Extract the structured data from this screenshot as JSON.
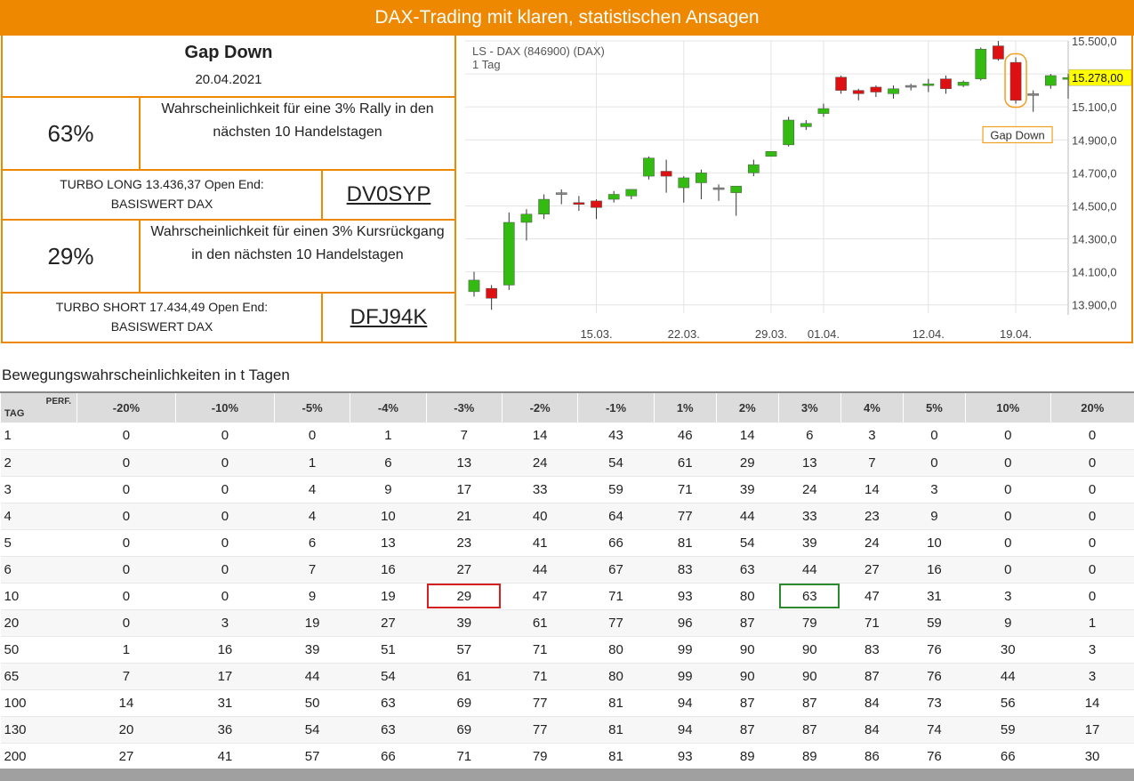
{
  "header": {
    "title": "DAX-Trading mit klaren, statistischen Ansagen"
  },
  "signal": {
    "name": "Gap Down",
    "date": "20.04.2021"
  },
  "long": {
    "probability": "63%",
    "description_line1": "Wahrscheinlichkeit für eine 3% Rally in den",
    "description_line2": "nächsten 10 Handelstagen",
    "turbo_line1": "TURBO LONG 13.436,37 Open End:",
    "turbo_line2": "BASISWERT DAX",
    "wkn": "DV0SYP"
  },
  "short": {
    "probability": "29%",
    "description_line1": "Wahrscheinlichkeit für einen 3% Kursrückgang",
    "description_line2": "in den nächsten 10 Handelstagen",
    "turbo_line1": "TURBO SHORT 17.434,49 Open End:",
    "turbo_line2": "BASISWERT DAX",
    "wkn": "DFJ94K"
  },
  "chart_data": {
    "type": "candlestick",
    "title": "LS - DAX (846900) (DAX)",
    "subtitle": "1 Tag",
    "y_ticks": [
      "15.500,0",
      "15.300,0",
      "15.100,0",
      "14.900,0",
      "14.700,0",
      "14.500,0",
      "14.300,0",
      "14.100,0",
      "13.900,0"
    ],
    "y_tick_values": [
      15500,
      15300,
      15100,
      14900,
      14700,
      14500,
      14300,
      14100,
      13900
    ],
    "ylim": [
      13850,
      15500
    ],
    "x_tick_labels": [
      "15.03.",
      "22.03.",
      "29.03.",
      "01.04.",
      "12.04.",
      "19.04."
    ],
    "x_tick_index": [
      7,
      12,
      17,
      20,
      26,
      31
    ],
    "price_label": "15.278,00",
    "annotation": "Gap Down",
    "annotation_index": 32,
    "colors": {
      "up": "#33bb11",
      "down": "#dd1111",
      "neutral": "#888888",
      "label_bg": "#ffff00"
    },
    "candles": [
      {
        "o": 13980,
        "h": 14100,
        "l": 13950,
        "c": 14050
      },
      {
        "o": 14000,
        "h": 14020,
        "l": 13870,
        "c": 13940
      },
      {
        "o": 14020,
        "h": 14460,
        "l": 13990,
        "c": 14400
      },
      {
        "o": 14400,
        "h": 14480,
        "l": 14290,
        "c": 14450
      },
      {
        "o": 14450,
        "h": 14570,
        "l": 14420,
        "c": 14540
      },
      {
        "o": 14580,
        "h": 14600,
        "l": 14510,
        "c": 14580
      },
      {
        "o": 14520,
        "h": 14560,
        "l": 14470,
        "c": 14510
      },
      {
        "o": 14530,
        "h": 14540,
        "l": 14420,
        "c": 14490
      },
      {
        "o": 14540,
        "h": 14590,
        "l": 14520,
        "c": 14570
      },
      {
        "o": 14560,
        "h": 14600,
        "l": 14540,
        "c": 14600
      },
      {
        "o": 14680,
        "h": 14800,
        "l": 14660,
        "c": 14790
      },
      {
        "o": 14710,
        "h": 14780,
        "l": 14580,
        "c": 14680
      },
      {
        "o": 14610,
        "h": 14680,
        "l": 14520,
        "c": 14670
      },
      {
        "o": 14640,
        "h": 14720,
        "l": 14540,
        "c": 14700
      },
      {
        "o": 14610,
        "h": 14630,
        "l": 14530,
        "c": 14610
      },
      {
        "o": 14580,
        "h": 14620,
        "l": 14440,
        "c": 14620
      },
      {
        "o": 14700,
        "h": 14780,
        "l": 14680,
        "c": 14750
      },
      {
        "o": 14800,
        "h": 14830,
        "l": 14800,
        "c": 14830
      },
      {
        "o": 14870,
        "h": 15040,
        "l": 14860,
        "c": 15020
      },
      {
        "o": 14980,
        "h": 15020,
        "l": 14960,
        "c": 15000
      },
      {
        "o": 15060,
        "h": 15120,
        "l": 15040,
        "c": 15090
      },
      {
        "o": 15280,
        "h": 15290,
        "l": 15180,
        "c": 15200
      },
      {
        "o": 15200,
        "h": 15210,
        "l": 15140,
        "c": 15180
      },
      {
        "o": 15220,
        "h": 15230,
        "l": 15160,
        "c": 15190
      },
      {
        "o": 15180,
        "h": 15230,
        "l": 15150,
        "c": 15210
      },
      {
        "o": 15230,
        "h": 15240,
        "l": 15200,
        "c": 15230
      },
      {
        "o": 15230,
        "h": 15270,
        "l": 15190,
        "c": 15240
      },
      {
        "o": 15270,
        "h": 15290,
        "l": 15180,
        "c": 15210
      },
      {
        "o": 15230,
        "h": 15260,
        "l": 15220,
        "c": 15250
      },
      {
        "o": 15270,
        "h": 15460,
        "l": 15260,
        "c": 15450
      },
      {
        "o": 15470,
        "h": 15500,
        "l": 15380,
        "c": 15390
      },
      {
        "o": 15370,
        "h": 15400,
        "l": 15120,
        "c": 15140
      },
      {
        "o": 15180,
        "h": 15200,
        "l": 15070,
        "c": 15180
      },
      {
        "o": 15230,
        "h": 15300,
        "l": 15210,
        "c": 15290
      },
      {
        "o": 15270,
        "h": 15300,
        "l": 15150,
        "c": 15278
      }
    ]
  },
  "table": {
    "title": "Bewegungswahrscheinlichkeiten in t Tagen",
    "corner_perf": "PERF.",
    "corner_tag": "TAG",
    "columns": [
      "-20%",
      "-10%",
      "-5%",
      "-4%",
      "-3%",
      "-2%",
      "-1%",
      "1%",
      "2%",
      "3%",
      "4%",
      "5%",
      "10%",
      "20%"
    ],
    "rows": [
      {
        "tag": "1",
        "values": [
          0,
          0,
          0,
          1,
          7,
          14,
          43,
          46,
          14,
          6,
          3,
          0,
          0,
          0
        ]
      },
      {
        "tag": "2",
        "values": [
          0,
          0,
          1,
          6,
          13,
          24,
          54,
          61,
          29,
          13,
          7,
          0,
          0,
          0
        ]
      },
      {
        "tag": "3",
        "values": [
          0,
          0,
          4,
          9,
          17,
          33,
          59,
          71,
          39,
          24,
          14,
          3,
          0,
          0
        ]
      },
      {
        "tag": "4",
        "values": [
          0,
          0,
          4,
          10,
          21,
          40,
          64,
          77,
          44,
          33,
          23,
          9,
          0,
          0
        ]
      },
      {
        "tag": "5",
        "values": [
          0,
          0,
          6,
          13,
          23,
          41,
          66,
          81,
          54,
          39,
          24,
          10,
          0,
          0
        ]
      },
      {
        "tag": "6",
        "values": [
          0,
          0,
          7,
          16,
          27,
          44,
          67,
          83,
          63,
          44,
          27,
          16,
          0,
          0
        ]
      },
      {
        "tag": "10",
        "values": [
          0,
          0,
          9,
          19,
          29,
          47,
          71,
          93,
          80,
          63,
          47,
          31,
          3,
          0
        ]
      },
      {
        "tag": "20",
        "values": [
          0,
          3,
          19,
          27,
          39,
          61,
          77,
          96,
          87,
          79,
          71,
          59,
          9,
          1
        ]
      },
      {
        "tag": "50",
        "values": [
          1,
          16,
          39,
          51,
          57,
          71,
          80,
          99,
          90,
          90,
          83,
          76,
          30,
          3
        ]
      },
      {
        "tag": "65",
        "values": [
          7,
          17,
          44,
          54,
          61,
          71,
          80,
          99,
          90,
          90,
          87,
          76,
          44,
          3
        ]
      },
      {
        "tag": "100",
        "values": [
          14,
          31,
          50,
          63,
          69,
          77,
          81,
          94,
          87,
          87,
          84,
          73,
          56,
          14
        ]
      },
      {
        "tag": "130",
        "values": [
          20,
          36,
          54,
          63,
          69,
          77,
          81,
          94,
          87,
          87,
          84,
          74,
          59,
          17
        ]
      },
      {
        "tag": "200",
        "values": [
          27,
          41,
          57,
          66,
          71,
          79,
          81,
          93,
          89,
          89,
          86,
          76,
          66,
          30
        ]
      }
    ],
    "highlights": [
      {
        "row": "10",
        "col": "-3%",
        "color": "red"
      },
      {
        "row": "10",
        "col": "3%",
        "color": "green"
      }
    ]
  }
}
